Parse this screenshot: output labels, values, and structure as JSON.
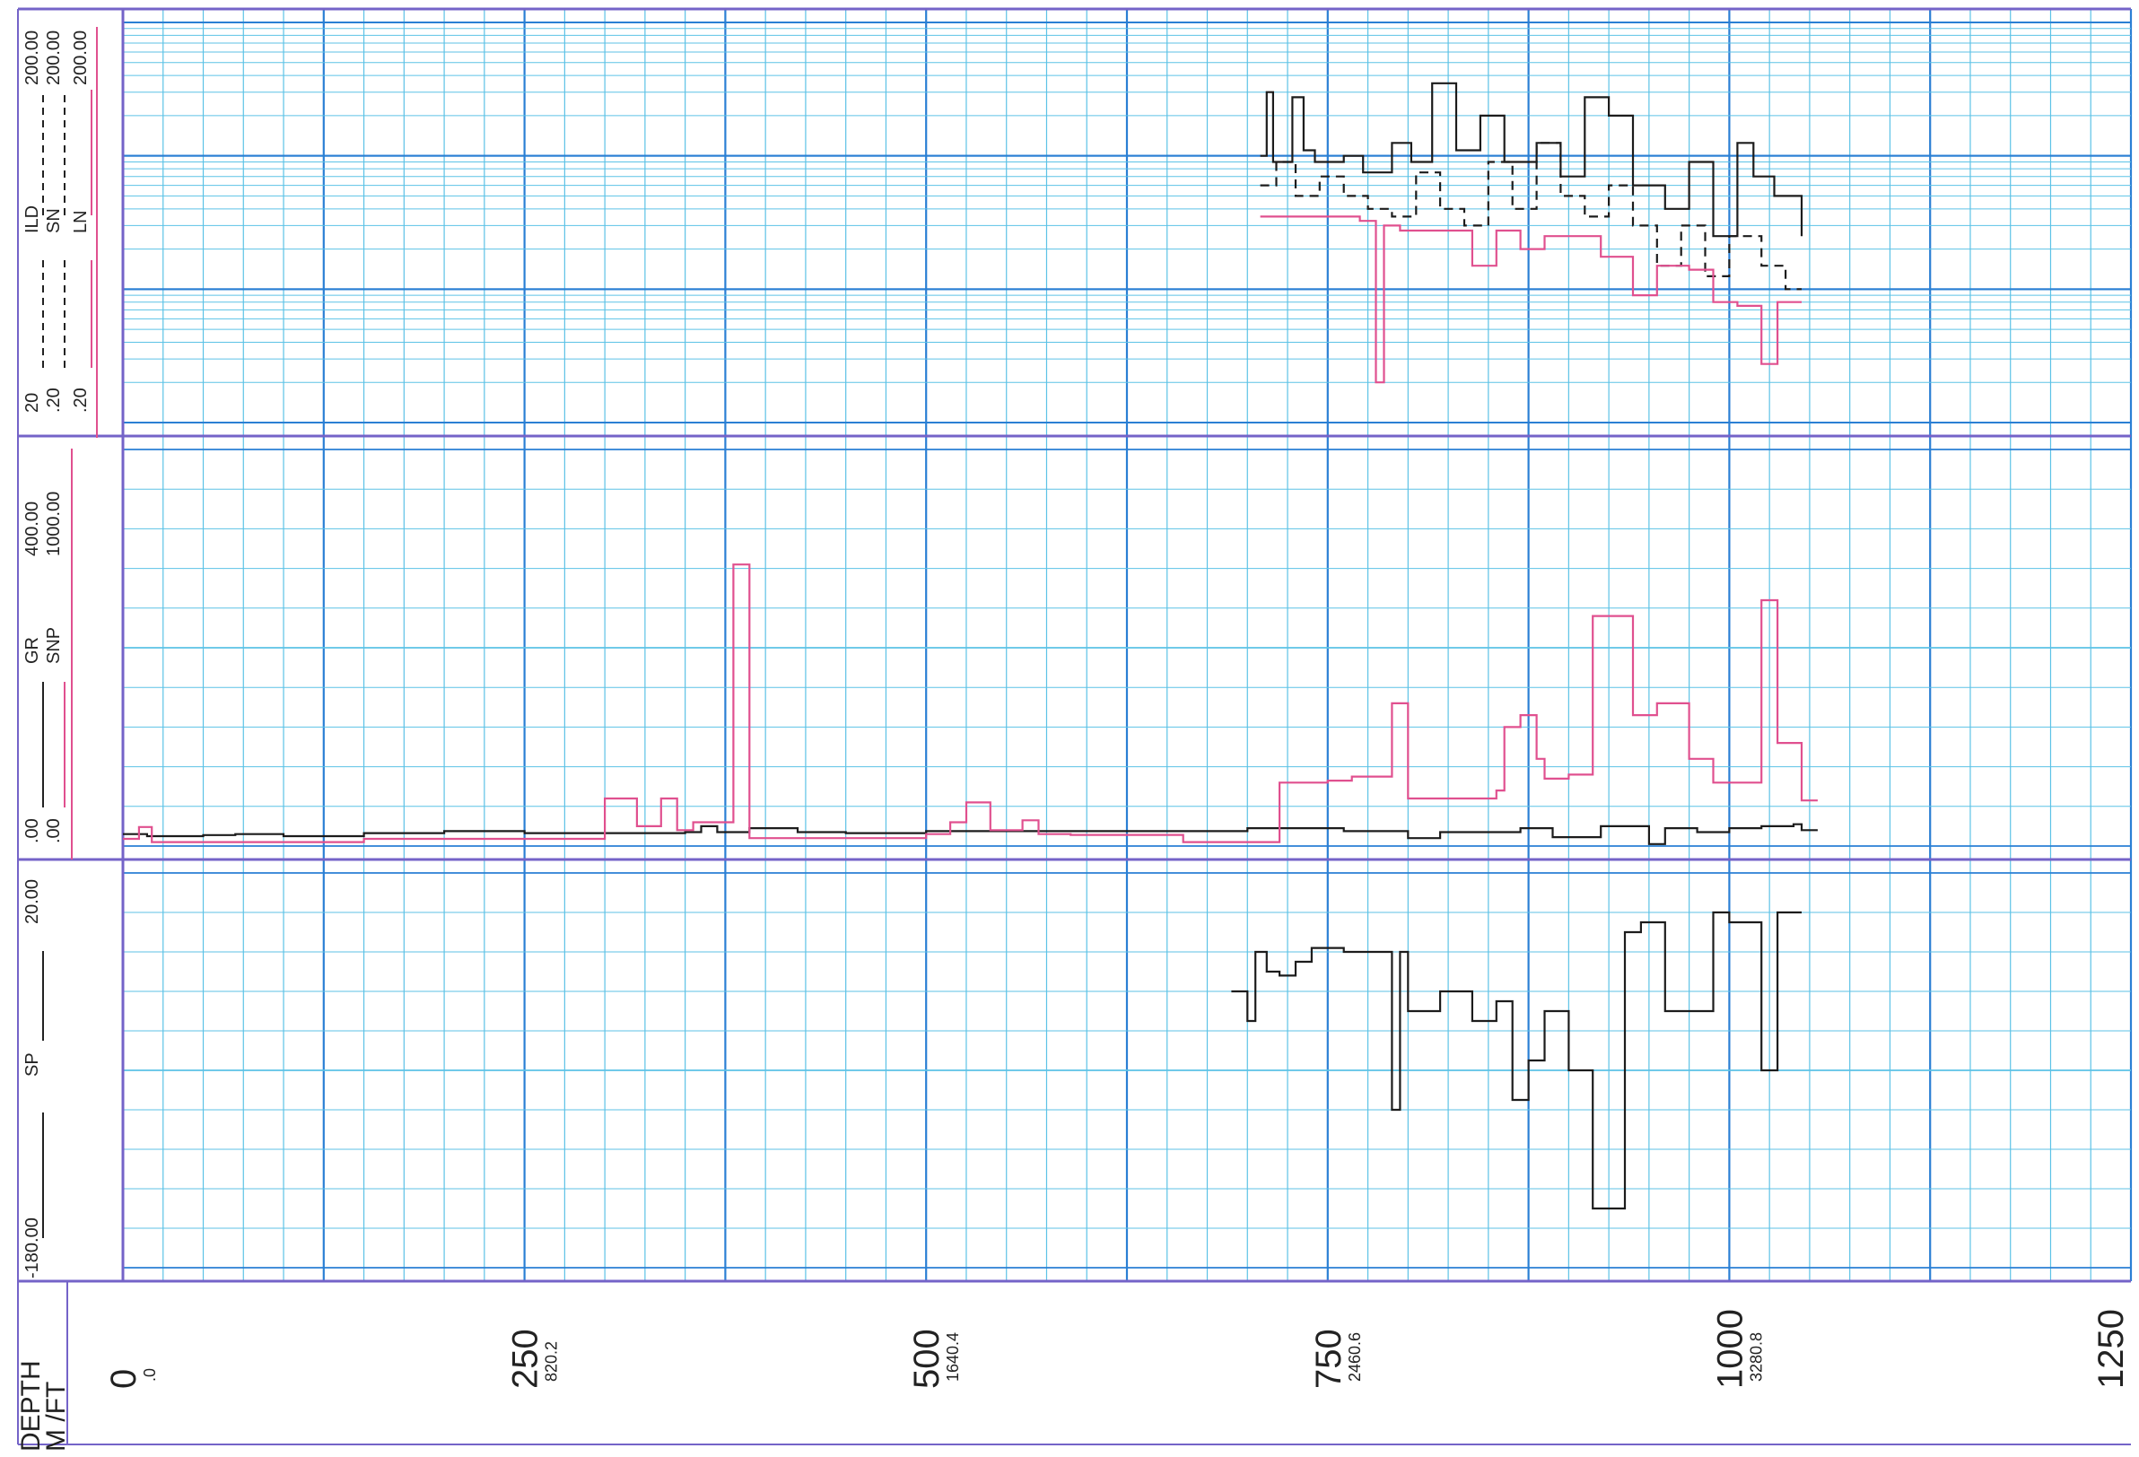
{
  "colors": {
    "grid_minor": "#5cc2e6",
    "grid_major": "#2a7fd4",
    "track_border": "#7463c8",
    "curve_black": "#1c1c1c",
    "curve_pink": "#e0508f"
  },
  "depth_header": {
    "line1": "DEPTH",
    "line2": "M /FT"
  },
  "depth_ticks": [
    {
      "m": 0,
      "m_label": "0",
      "ft_label": ".0"
    },
    {
      "m": 250,
      "m_label": "250",
      "ft_label": "820.2"
    },
    {
      "m": 500,
      "m_label": "500",
      "ft_label": "1640.4"
    },
    {
      "m": 750,
      "m_label": "750",
      "ft_label": "2460.6"
    },
    {
      "m": 1000,
      "m_label": "1000",
      "ft_label": "3280.8"
    },
    {
      "m": 1250,
      "m_label": "1250",
      "ft_label": ""
    }
  ],
  "tracks": {
    "resistivity": {
      "scale": "log",
      "legend": [
        {
          "name": "ILD",
          "min": "20",
          "max": "200.00",
          "style": "solid"
        },
        {
          "name": "SN",
          "min": ".20",
          "max": "200.00",
          "style": "dashed"
        },
        {
          "name": "LN",
          "min": ".20",
          "max": "200.00",
          "style": "solid-pink"
        }
      ]
    },
    "gr": {
      "legend": [
        {
          "name": "GR",
          "min": ".00",
          "max": "400.00"
        },
        {
          "name": "SNP",
          "min": ".00",
          "max": "1000.00"
        }
      ]
    },
    "sp": {
      "legend": [
        {
          "name": "SP",
          "min": "-180.00",
          "max": "20.00"
        }
      ]
    }
  },
  "chart_data": {
    "type": "line",
    "x_axis": {
      "label": "DEPTH M /FT",
      "range": [
        0,
        1250
      ],
      "units": "m"
    },
    "tracks": [
      {
        "track": "resistivity",
        "series": [
          {
            "name": "ILD",
            "style": "solid",
            "x": [
              708,
              712,
              716,
              728,
              735,
              742,
              760,
              772,
              790,
              802,
              815,
              830,
              845,
              860,
              880,
              895,
              910,
              925,
              940,
              960,
              975,
              990,
              1005,
              1015,
              1028,
              1045
            ],
            "y": [
              20,
              60,
              18,
              55,
              22,
              18,
              20,
              15,
              25,
              18,
              70,
              22,
              40,
              18,
              25,
              14,
              55,
              40,
              12,
              8,
              18,
              5,
              25,
              14,
              10,
              5
            ]
          },
          {
            "name": "SN",
            "style": "dashed",
            "x": [
              708,
              718,
              730,
              745,
              760,
              775,
              790,
              805,
              820,
              835,
              850,
              865,
              880,
              895,
              910,
              925,
              940,
              955,
              970,
              985,
              1000,
              1020,
              1035,
              1045
            ],
            "y": [
              12,
              18,
              10,
              14,
              10,
              8,
              7,
              15,
              8,
              6,
              18,
              8,
              25,
              10,
              7,
              12,
              6,
              3,
              6,
              2.5,
              5,
              3,
              2,
              2
            ]
          },
          {
            "name": "LN",
            "style": "solid-pink",
            "x": [
              708,
              740,
              770,
              780,
              785,
              795,
              820,
              840,
              855,
              870,
              885,
              900,
              920,
              940,
              955,
              975,
              990,
              1005,
              1020,
              1030,
              1045
            ],
            "y": [
              7,
              7,
              6.5,
              0.4,
              6,
              5.5,
              5.5,
              3,
              5.5,
              4,
              5,
              5,
              3.5,
              1.8,
              3,
              2.8,
              1.6,
              1.5,
              0.55,
              1.6,
              1.6
            ]
          }
        ]
      },
      {
        "track": "gr",
        "series": [
          {
            "name": "GR",
            "x": [
              0,
              15,
              50,
              70,
              100,
              150,
              200,
              250,
              300,
              350,
              360,
              370,
              390,
              420,
              450,
              500,
              550,
              600,
              650,
              700,
              720,
              760,
              800,
              820,
              850,
              870,
              890,
              920,
              950,
              960,
              980,
              1000,
              1020,
              1040,
              1045,
              1055
            ],
            "y": [
              12,
              10,
              11,
              12,
              10,
              13,
              15,
              13,
              13,
              14,
              20,
              14,
              18,
              14,
              13,
              15,
              15,
              15,
              15,
              18,
              18,
              15,
              8,
              14,
              14,
              18,
              9,
              20,
              2,
              18,
              14,
              18,
              20,
              22,
              16,
              16
            ]
          },
          {
            "name": "SNP",
            "x": [
              0,
              10,
              18,
              50,
              150,
              250,
              290,
              300,
              320,
              335,
              345,
              355,
              380,
              390,
              430,
              500,
              515,
              525,
              540,
              560,
              570,
              590,
              630,
              660,
              690,
              720,
              750,
              765,
              790,
              800,
              835,
              855,
              860,
              870,
              880,
              885,
              900,
              915,
              940,
              955,
              975,
              990,
              1000,
              1020,
              1030,
              1045,
              1055
            ],
            "y": [
              18,
              48,
              10,
              10,
              18,
              18,
              18,
              120,
              50,
              120,
              40,
              60,
              710,
              20,
              20,
              30,
              60,
              110,
              40,
              65,
              30,
              28,
              28,
              10,
              10,
              160,
              165,
              175,
              360,
              120,
              120,
              140,
              300,
              330,
              220,
              170,
              180,
              580,
              330,
              360,
              220,
              160,
              160,
              620,
              260,
              115,
              115
            ]
          }
        ]
      },
      {
        "track": "sp",
        "series": [
          {
            "name": "SP",
            "x": [
              690,
              700,
              705,
              712,
              720,
              730,
              740,
              750,
              760,
              790,
              795,
              800,
              820,
              840,
              855,
              865,
              875,
              885,
              900,
              915,
              935,
              945,
              960,
              990,
              1000,
              1020,
              1030,
              1045
            ],
            "y": [
              -40,
              -55,
              -20,
              -30,
              -32,
              -25,
              -18,
              -18,
              -20,
              -100,
              -20,
              -50,
              -40,
              -55,
              -45,
              -95,
              -75,
              -50,
              -80,
              -150,
              -10,
              -5,
              -50,
              0,
              -5,
              -80,
              0,
              0
            ]
          }
        ]
      }
    ]
  }
}
